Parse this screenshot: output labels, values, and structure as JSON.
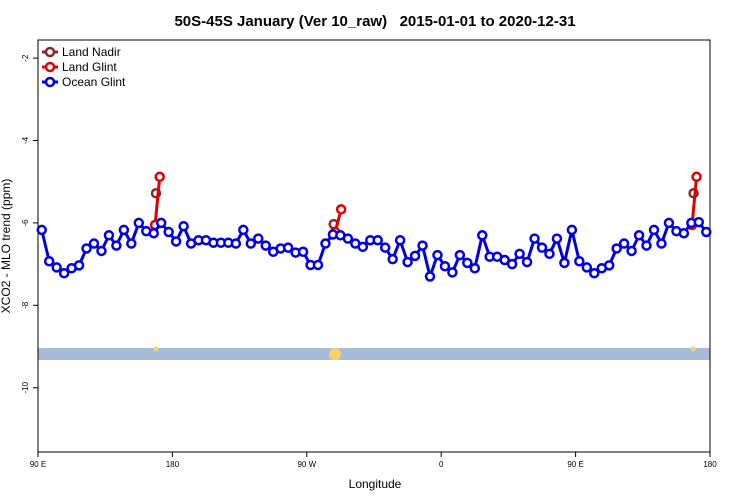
{
  "chart_data": {
    "type": "line",
    "title": "50S-45S January (Ver 10_raw)   2015-01-01 to 2020-12-31",
    "xlabel": "Longitude",
    "ylabel": "XCO2 - MLO trend (ppm)",
    "xlim": [
      90,
      540
    ],
    "ylim": [
      -11.56,
      -1.56
    ],
    "xticks": [
      {
        "value": 90,
        "label": "90 E"
      },
      {
        "value": 180,
        "label": "180"
      },
      {
        "value": 270,
        "label": "90 W"
      },
      {
        "value": 360,
        "label": "0"
      },
      {
        "value": 450,
        "label": "90 E"
      },
      {
        "value": 540,
        "label": "180"
      }
    ],
    "yticks": [
      -2,
      -4,
      -6,
      -8,
      -10
    ],
    "legend": "top-left",
    "series": [
      {
        "name": "Land Nadir",
        "color": "#8b2a2a",
        "x": [
          169,
          null,
          288,
          null,
          529
        ],
        "values": [
          -5.28,
          null,
          -6.03,
          null,
          -5.28
        ]
      },
      {
        "name": "Land Glint",
        "color": "#e00000",
        "x": [
          168.4,
          171.5,
          null,
          289,
          293,
          null,
          528,
          531
        ],
        "values": [
          -6.05,
          -4.88,
          null,
          -6.22,
          -5.67,
          null,
          -6.05,
          -4.88
        ]
      },
      {
        "name": "Ocean Glint",
        "color": "#0000e0",
        "x": [
          92.5,
          97.5,
          102.5,
          107.5,
          112.5,
          117.5,
          122.5,
          127.5,
          132.5,
          137.5,
          142.5,
          147.5,
          152.5,
          157.5,
          162.5,
          167.5,
          172.5,
          177.5,
          182.5,
          187.5,
          192.5,
          197.5,
          202.5,
          207.5,
          212.5,
          217.5,
          222.5,
          227.5,
          232.5,
          237.5,
          242.5,
          247.5,
          252.5,
          257.5,
          262.5,
          267.5,
          272.5,
          277.5,
          282.5,
          287.5,
          292.5,
          297.5,
          302.5,
          307.5,
          312.5,
          317.5,
          322.5,
          327.5,
          332.5,
          337.5,
          342.5,
          347.5,
          352.5,
          357.5,
          362.5,
          367.5,
          372.5,
          377.5,
          382.5,
          387.5,
          392.5,
          397.5,
          402.5,
          407.5,
          412.5,
          417.5,
          422.5,
          427.5,
          432.5,
          437.5,
          442.5,
          447.5,
          452.5,
          457.5,
          462.5,
          467.5,
          472.5,
          477.5,
          482.5,
          487.5,
          492.5,
          497.5,
          502.5,
          507.5,
          512.5,
          517.5,
          522.5,
          527.5,
          532.5,
          537.5
        ],
        "values": [
          -6.17,
          -6.93,
          -7.08,
          -7.22,
          -7.1,
          -7.03,
          -6.62,
          -6.5,
          -6.68,
          -6.3,
          -6.55,
          -6.17,
          -6.5,
          -6.0,
          -6.2,
          -6.25,
          -6.0,
          -6.22,
          -6.45,
          -6.08,
          -6.5,
          -6.42,
          -6.42,
          -6.48,
          -6.48,
          -6.48,
          -6.5,
          -6.17,
          -6.5,
          -6.38,
          -6.55,
          -6.7,
          -6.62,
          -6.6,
          -6.72,
          -6.7,
          -7.02,
          -7.02,
          -6.5,
          -6.28,
          -6.3,
          -6.38,
          -6.5,
          -6.58,
          -6.42,
          -6.42,
          -6.6,
          -6.88,
          -6.42,
          -6.95,
          -6.8,
          -6.55,
          -7.3,
          -6.78,
          -7.05,
          -7.2,
          -6.78,
          -6.97,
          -7.1,
          -6.3,
          -6.82,
          -6.82,
          -6.9,
          -7.0,
          -6.75,
          -6.95,
          -6.38,
          -6.6,
          -6.75,
          -6.38,
          -6.97,
          -6.17,
          -6.93,
          -7.08,
          -7.22,
          -7.1,
          -7.03,
          -6.62,
          -6.5,
          -6.68,
          -6.3,
          -6.55,
          -6.17,
          -6.5,
          -6.0,
          -6.2,
          -6.25,
          -6.0,
          -5.98,
          -6.22
        ]
      }
    ]
  }
}
